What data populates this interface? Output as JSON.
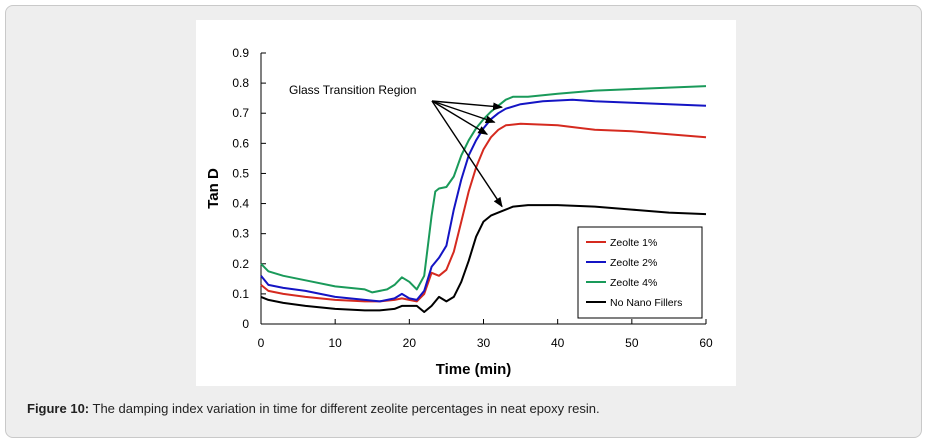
{
  "caption": {
    "label": "Figure 10:",
    "text": " The damping index variation in time for different zeolite percentages in neat epoxy resin."
  },
  "colors": {
    "zeolite1": "#d52a1f",
    "zeolite2": "#1414c4",
    "zeolite4": "#1a9a5a",
    "nofiller": "#000000"
  },
  "chart_data": {
    "type": "line",
    "title": "",
    "xlabel": "Time (min)",
    "ylabel": "Tan D",
    "xlim": [
      0,
      60
    ],
    "ylim": [
      0,
      0.9
    ],
    "xticks": [
      0,
      10,
      20,
      30,
      40,
      50,
      60
    ],
    "yticks": [
      0,
      0.1,
      0.2,
      0.3,
      0.4,
      0.5,
      0.6,
      0.7,
      0.8,
      0.9
    ],
    "ytick_labels": [
      "0",
      "0.1",
      "0.2",
      "0.3",
      "0.4",
      "0.5",
      "0.6",
      "0.7",
      "0.8",
      "0.9"
    ],
    "grid": false,
    "legend_position": "bottom-right",
    "annotation": {
      "text": "Glass Transition Region",
      "anchor": [
        23.5,
        0.74
      ],
      "arrow_targets": [
        [
          32.5,
          0.72
        ],
        [
          31.5,
          0.67
        ],
        [
          30.5,
          0.63
        ],
        [
          32.5,
          0.39
        ]
      ]
    },
    "series": [
      {
        "name": "Zeolte 1%",
        "color_key": "zeolite1",
        "x": [
          0,
          1,
          3,
          6,
          10,
          14,
          16,
          18,
          19,
          20,
          21,
          22,
          23,
          24,
          25,
          26,
          27,
          28,
          29,
          30,
          31,
          32,
          33,
          35,
          40,
          45,
          50,
          55,
          60
        ],
        "y": [
          0.13,
          0.11,
          0.1,
          0.09,
          0.08,
          0.075,
          0.075,
          0.08,
          0.085,
          0.08,
          0.075,
          0.1,
          0.17,
          0.16,
          0.18,
          0.24,
          0.34,
          0.44,
          0.52,
          0.58,
          0.62,
          0.645,
          0.66,
          0.665,
          0.66,
          0.645,
          0.64,
          0.63,
          0.62
        ]
      },
      {
        "name": "Zeolte 2%",
        "color_key": "zeolite2",
        "x": [
          0,
          1,
          3,
          6,
          10,
          14,
          16,
          18,
          19,
          20,
          21,
          22,
          23,
          24,
          25,
          26,
          27,
          28,
          29,
          30,
          31,
          32,
          33,
          35,
          38,
          42,
          45,
          50,
          55,
          60
        ],
        "y": [
          0.16,
          0.13,
          0.12,
          0.11,
          0.09,
          0.08,
          0.075,
          0.085,
          0.1,
          0.085,
          0.08,
          0.11,
          0.19,
          0.22,
          0.26,
          0.38,
          0.48,
          0.56,
          0.61,
          0.65,
          0.68,
          0.7,
          0.715,
          0.73,
          0.74,
          0.745,
          0.74,
          0.735,
          0.73,
          0.725
        ]
      },
      {
        "name": "Zeolte 4%",
        "color_key": "zeolite4",
        "x": [
          0,
          1,
          3,
          6,
          10,
          14,
          15,
          17,
          18,
          19,
          20,
          21,
          22,
          23,
          23.5,
          24,
          25,
          26,
          27,
          28,
          29,
          30,
          31,
          32,
          33,
          34,
          36,
          40,
          45,
          50,
          55,
          60
        ],
        "y": [
          0.2,
          0.175,
          0.16,
          0.145,
          0.125,
          0.115,
          0.105,
          0.115,
          0.13,
          0.155,
          0.14,
          0.115,
          0.16,
          0.36,
          0.44,
          0.45,
          0.455,
          0.49,
          0.56,
          0.61,
          0.65,
          0.68,
          0.705,
          0.725,
          0.745,
          0.755,
          0.755,
          0.765,
          0.775,
          0.78,
          0.785,
          0.79
        ]
      },
      {
        "name": "No Nano Fillers",
        "color_key": "nofiller",
        "x": [
          0,
          1,
          3,
          6,
          10,
          14,
          16,
          18,
          19,
          20,
          21,
          22,
          23,
          24,
          25,
          26,
          27,
          28,
          29,
          30,
          31,
          32,
          33,
          34,
          36,
          40,
          45,
          50,
          55,
          60
        ],
        "y": [
          0.09,
          0.08,
          0.07,
          0.06,
          0.05,
          0.045,
          0.045,
          0.05,
          0.06,
          0.06,
          0.06,
          0.04,
          0.06,
          0.09,
          0.075,
          0.09,
          0.14,
          0.21,
          0.29,
          0.34,
          0.36,
          0.37,
          0.38,
          0.39,
          0.395,
          0.395,
          0.39,
          0.38,
          0.37,
          0.365
        ]
      }
    ]
  }
}
